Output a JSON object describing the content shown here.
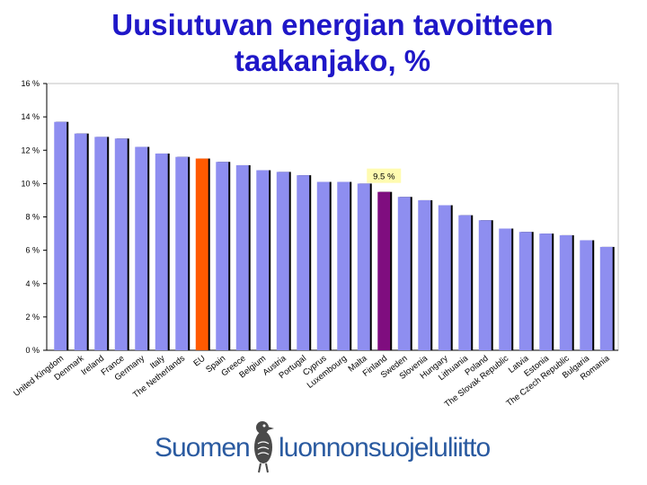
{
  "title_line1": "Uusiutuvan energian tavoitteen",
  "title_line2": "taakanjako, %",
  "chart_data": {
    "type": "bar",
    "title": "Uusiutuvan energian tavoitteen taakanjako, %",
    "xlabel": "",
    "ylabel": "",
    "ylim": [
      0,
      16
    ],
    "yticks": [
      "0 %",
      "2 %",
      "4 %",
      "6 %",
      "8 %",
      "10 %",
      "12 %",
      "14 %",
      "16 %"
    ],
    "grid": false,
    "categories": [
      "United Kingdom",
      "Denmark",
      "Ireland",
      "France",
      "Germany",
      "Italy",
      "The Netherlands",
      "EU",
      "Spain",
      "Greece",
      "Belgium",
      "Austria",
      "Portugal",
      "Cyprus",
      "Luxembourg",
      "Malta",
      "Finland",
      "Sweden",
      "Slovenia",
      "Hungary",
      "Lithuania",
      "Poland",
      "The Slovak Republic",
      "Latvia",
      "Estonia",
      "The Czech Republic",
      "Bulgaria",
      "Romania"
    ],
    "values": [
      13.7,
      13.0,
      12.8,
      12.7,
      12.2,
      11.8,
      11.6,
      11.5,
      11.3,
      11.1,
      10.8,
      10.7,
      10.5,
      10.1,
      10.1,
      10.0,
      9.5,
      9.2,
      9.0,
      8.7,
      8.1,
      7.8,
      7.3,
      7.1,
      7.0,
      6.9,
      6.6,
      6.2
    ],
    "colors": {
      "default": "#8e8ef0",
      "EU": "#ff5a00",
      "Finland": "#7f0d7f",
      "dark_edge": "#000000"
    },
    "annotation": {
      "category": "Finland",
      "text": "9.5 %",
      "background": "#fffbb0"
    }
  },
  "logo": {
    "text_left": "Suomen",
    "text_right": "luonnonsuojeluliitto",
    "icon": "bird-icon",
    "color": "#2a5aa0"
  }
}
